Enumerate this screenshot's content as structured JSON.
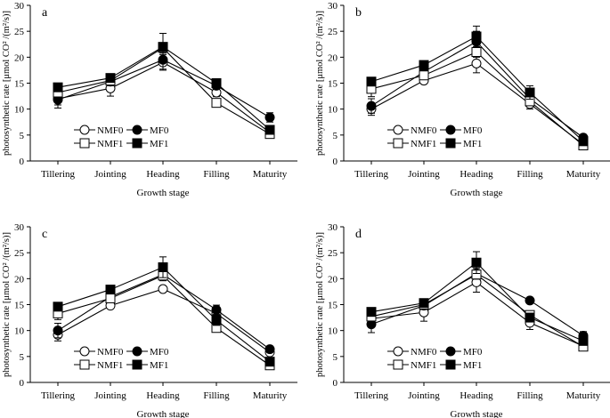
{
  "chart_data": [
    {
      "type": "line",
      "panel": "a",
      "xlabel": "Growth stage",
      "ylabel": "photosynthetic rate  [μmol CO² /(m²/s)]",
      "ylim": [
        0,
        30
      ],
      "yticks": [
        0,
        5,
        10,
        15,
        20,
        25,
        30
      ],
      "categories": [
        "Tillering",
        "Jointing",
        "Heading",
        "Filling",
        "Maturity"
      ],
      "legend": "bottom-left",
      "series": [
        {
          "name": "NMF0",
          "marker": "open-circle",
          "values": [
            12.0,
            14.0,
            19.0,
            13.2,
            5.5
          ],
          "err": [
            1.2,
            1.5,
            1.5,
            0.8,
            0.6
          ]
        },
        {
          "name": "MF0",
          "marker": "filled-circle",
          "values": [
            11.8,
            15.3,
            19.5,
            14.5,
            8.4
          ],
          "err": [
            1.6,
            0.8,
            1.8,
            0.6,
            0.9
          ]
        },
        {
          "name": "NMF1",
          "marker": "open-square",
          "values": [
            13.2,
            15.5,
            21.8,
            11.2,
            5.2
          ],
          "err": [
            0.8,
            0.8,
            1.0,
            0.6,
            0.6
          ]
        },
        {
          "name": "MF1",
          "marker": "filled-square",
          "values": [
            14.2,
            16.0,
            22.0,
            15.0,
            6.0
          ],
          "err": [
            0.8,
            0.7,
            2.6,
            0.5,
            0.8
          ]
        }
      ]
    },
    {
      "type": "line",
      "panel": "b",
      "xlabel": "Growth stage",
      "ylabel": "photosynthetic rate  [μmol CO² /(m²/s)]",
      "ylim": [
        0,
        30
      ],
      "yticks": [
        0,
        5,
        10,
        15,
        20,
        25,
        30
      ],
      "categories": [
        "Tillering",
        "Jointing",
        "Heading",
        "Filling",
        "Maturity"
      ],
      "legend": "bottom-left",
      "series": [
        {
          "name": "NMF0",
          "marker": "open-circle",
          "values": [
            10.0,
            15.5,
            18.8,
            11.0,
            3.2
          ],
          "err": [
            1.2,
            0.5,
            1.8,
            1.0,
            0.4
          ]
        },
        {
          "name": "MF0",
          "marker": "filled-circle",
          "values": [
            10.6,
            17.2,
            23.0,
            12.0,
            4.5
          ],
          "err": [
            1.4,
            0.8,
            2.0,
            0.8,
            0.6
          ]
        },
        {
          "name": "NMF1",
          "marker": "open-square",
          "values": [
            13.9,
            16.5,
            21.0,
            11.5,
            3.0
          ],
          "err": [
            1.5,
            0.7,
            1.0,
            0.8,
            0.4
          ]
        },
        {
          "name": "MF1",
          "marker": "filled-square",
          "values": [
            15.3,
            18.5,
            24.0,
            13.2,
            3.8
          ],
          "err": [
            0.7,
            0.5,
            2.0,
            1.3,
            0.6
          ]
        }
      ]
    },
    {
      "type": "line",
      "panel": "c",
      "xlabel": "Growth stage",
      "ylabel": "photosynthetic rate  [μmol CO² /(m²/s)]",
      "ylim": [
        0,
        30
      ],
      "yticks": [
        0,
        5,
        10,
        15,
        20,
        25,
        30
      ],
      "categories": [
        "Tillering",
        "Jointing",
        "Heading",
        "Filling",
        "Maturity"
      ],
      "legend": "bottom-left",
      "series": [
        {
          "name": "NMF0",
          "marker": "open-circle",
          "values": [
            9.2,
            14.8,
            18.0,
            13.3,
            5.8
          ],
          "err": [
            1.2,
            0.5,
            0.5,
            0.8,
            0.5
          ]
        },
        {
          "name": "MF0",
          "marker": "filled-circle",
          "values": [
            10.0,
            16.5,
            20.8,
            14.0,
            6.4
          ],
          "err": [
            1.4,
            0.8,
            1.2,
            0.9,
            0.6
          ]
        },
        {
          "name": "NMF1",
          "marker": "open-square",
          "values": [
            13.3,
            16.2,
            20.6,
            10.5,
            3.3
          ],
          "err": [
            1.2,
            0.7,
            0.8,
            0.6,
            0.4
          ]
        },
        {
          "name": "MF1",
          "marker": "filled-square",
          "values": [
            14.6,
            17.9,
            22.2,
            12.0,
            4.0
          ],
          "err": [
            0.7,
            0.5,
            2.0,
            1.0,
            0.5
          ]
        }
      ]
    },
    {
      "type": "line",
      "panel": "d",
      "xlabel": "Growth stage",
      "ylabel": "photosynthetic rate  [μmol CO² /(m²/s)]",
      "ylim": [
        0,
        30
      ],
      "yticks": [
        0,
        5,
        10,
        15,
        20,
        25,
        30
      ],
      "categories": [
        "Tillering",
        "Jointing",
        "Heading",
        "Filling",
        "Maturity"
      ],
      "legend": "bottom-left",
      "series": [
        {
          "name": "NMF0",
          "marker": "open-circle",
          "values": [
            12.3,
            13.5,
            19.3,
            11.5,
            7.0
          ],
          "err": [
            1.0,
            1.7,
            1.9,
            1.3,
            0.5
          ]
        },
        {
          "name": "MF0",
          "marker": "filled-circle",
          "values": [
            11.2,
            14.8,
            21.0,
            15.8,
            9.0
          ],
          "err": [
            1.6,
            0.7,
            1.0,
            0.4,
            0.8
          ]
        },
        {
          "name": "NMF1",
          "marker": "open-square",
          "values": [
            12.7,
            15.0,
            20.8,
            13.0,
            6.9
          ],
          "err": [
            0.8,
            0.7,
            0.9,
            0.8,
            0.5
          ]
        },
        {
          "name": "MF1",
          "marker": "filled-square",
          "values": [
            13.6,
            15.3,
            23.1,
            12.5,
            8.0
          ],
          "err": [
            0.8,
            0.6,
            2.1,
            0.8,
            0.7
          ]
        }
      ]
    }
  ]
}
